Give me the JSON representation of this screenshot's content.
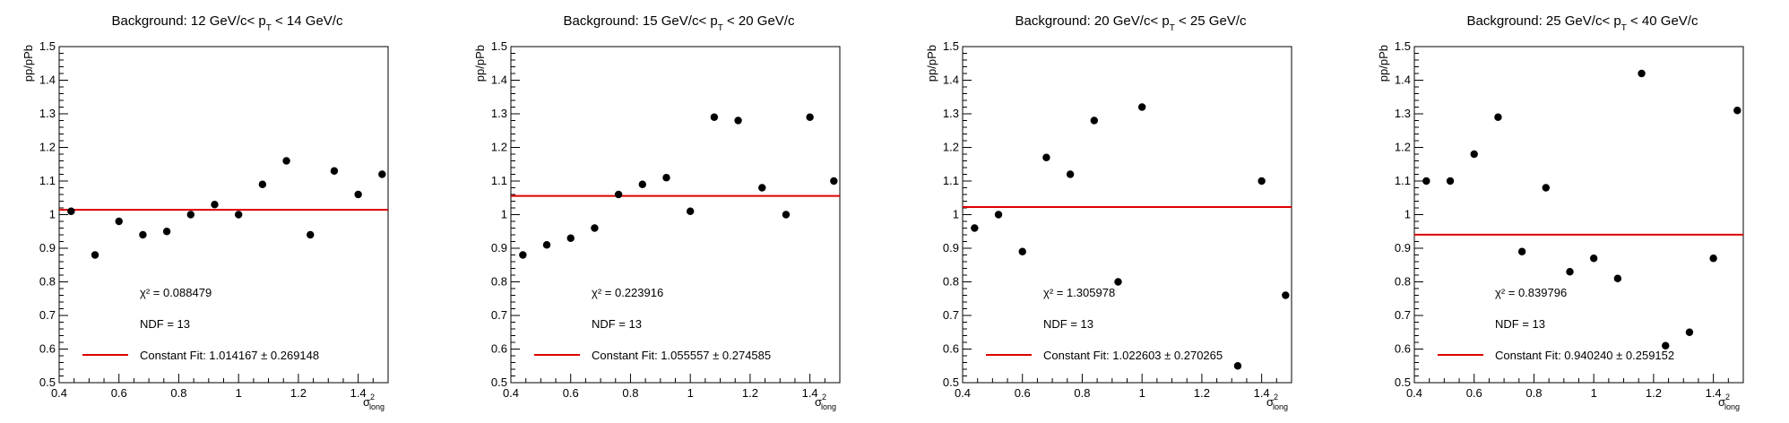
{
  "chart_data": [
    {
      "type": "scatter",
      "title": "Background: 12 GeV/c< p",
      "title_sub": "T",
      "title_end": " < 14 GeV/c",
      "xlabel": "σ",
      "xlabel_sup": "2",
      "xlabel_sub": "long",
      "ylabel": "pp/pPb",
      "xlim": [
        0.4,
        1.5
      ],
      "ylim": [
        0.5,
        1.5
      ],
      "xticks": [
        "0.4",
        "0.6",
        "0.8",
        "1",
        "1.2",
        "1.4"
      ],
      "yticks": [
        "0.5",
        "0.6",
        "0.7",
        "0.8",
        "0.9",
        "1",
        "1.1",
        "1.2",
        "1.3",
        "1.4",
        "1.5"
      ],
      "x": [
        0.44,
        0.52,
        0.6,
        0.68,
        0.76,
        0.84,
        0.92,
        1.0,
        1.08,
        1.16,
        1.24,
        1.32,
        1.4,
        1.48
      ],
      "y": [
        1.01,
        0.88,
        0.98,
        0.94,
        0.95,
        1.0,
        1.03,
        1.0,
        1.09,
        1.16,
        0.94,
        1.13,
        1.06,
        1.12
      ],
      "fit_value": 1.014167,
      "chi2": "χ² = 0.088479",
      "ndf": "NDF = 13",
      "legend": "Constant Fit: 1.014167 ± 0.269148",
      "fit_color": "#dd0000",
      "marker_color": "#000000"
    },
    {
      "type": "scatter",
      "title": "Background: 15 GeV/c< p",
      "title_sub": "T",
      "title_end": " < 20 GeV/c",
      "xlabel": "σ",
      "xlabel_sup": "2",
      "xlabel_sub": "long",
      "ylabel": "pp/pPb",
      "xlim": [
        0.4,
        1.5
      ],
      "ylim": [
        0.5,
        1.5
      ],
      "xticks": [
        "0.4",
        "0.6",
        "0.8",
        "1",
        "1.2",
        "1.4"
      ],
      "yticks": [
        "0.5",
        "0.6",
        "0.7",
        "0.8",
        "0.9",
        "1",
        "1.1",
        "1.2",
        "1.3",
        "1.4",
        "1.5"
      ],
      "x": [
        0.44,
        0.52,
        0.6,
        0.68,
        0.76,
        0.84,
        0.92,
        1.0,
        1.08,
        1.16,
        1.24,
        1.32,
        1.4,
        1.48
      ],
      "y": [
        0.88,
        0.91,
        0.93,
        0.96,
        1.06,
        1.09,
        1.11,
        1.01,
        1.29,
        1.28,
        1.08,
        1.0,
        1.29,
        1.1
      ],
      "fit_value": 1.055557,
      "chi2": "χ² = 0.223916",
      "ndf": "NDF = 13",
      "legend": "Constant Fit: 1.055557 ± 0.274585",
      "fit_color": "#dd0000",
      "marker_color": "#000000"
    },
    {
      "type": "scatter",
      "title": "Background: 20 GeV/c< p",
      "title_sub": "T",
      "title_end": " < 25 GeV/c",
      "xlabel": "σ",
      "xlabel_sup": "2",
      "xlabel_sub": "long",
      "ylabel": "pp/pPb",
      "xlim": [
        0.4,
        1.5
      ],
      "ylim": [
        0.5,
        1.5
      ],
      "xticks": [
        "0.4",
        "0.6",
        "0.8",
        "1",
        "1.2",
        "1.4"
      ],
      "yticks": [
        "0.5",
        "0.6",
        "0.7",
        "0.8",
        "0.9",
        "1",
        "1.1",
        "1.2",
        "1.3",
        "1.4",
        "1.5"
      ],
      "x": [
        0.44,
        0.52,
        0.6,
        0.68,
        0.76,
        0.84,
        0.92,
        1.0,
        1.32,
        1.4,
        1.48
      ],
      "y": [
        0.96,
        1.0,
        0.89,
        1.17,
        1.12,
        1.28,
        0.8,
        1.32,
        0.55,
        1.1,
        0.76
      ],
      "fit_value": 1.022603,
      "chi2": "χ² = 1.305978",
      "ndf": "NDF = 13",
      "legend": "Constant Fit: 1.022603 ± 0.270265",
      "fit_color": "#dd0000",
      "marker_color": "#000000"
    },
    {
      "type": "scatter",
      "title": "Background: 25 GeV/c< p",
      "title_sub": "T",
      "title_end": " < 40 GeV/c",
      "xlabel": "σ",
      "xlabel_sup": "2",
      "xlabel_sub": "long",
      "ylabel": "pp/pPb",
      "xlim": [
        0.4,
        1.5
      ],
      "ylim": [
        0.5,
        1.5
      ],
      "xticks": [
        "0.4",
        "0.6",
        "0.8",
        "1",
        "1.2",
        "1.4"
      ],
      "yticks": [
        "0.5",
        "0.6",
        "0.7",
        "0.8",
        "0.9",
        "1",
        "1.1",
        "1.2",
        "1.3",
        "1.4",
        "1.5"
      ],
      "x": [
        0.44,
        0.52,
        0.6,
        0.68,
        0.76,
        0.84,
        0.92,
        1.0,
        1.08,
        1.16,
        1.24,
        1.32,
        1.4,
        1.48
      ],
      "y": [
        1.1,
        1.1,
        1.18,
        1.29,
        0.89,
        1.08,
        0.83,
        0.87,
        0.81,
        1.42,
        0.61,
        0.65,
        0.87,
        1.31
      ],
      "fit_value": 0.94024,
      "chi2": "χ² = 0.839796",
      "ndf": "NDF = 13",
      "legend": "Constant Fit: 0.940240 ± 0.259152",
      "fit_color": "#dd0000",
      "marker_color": "#000000"
    }
  ]
}
